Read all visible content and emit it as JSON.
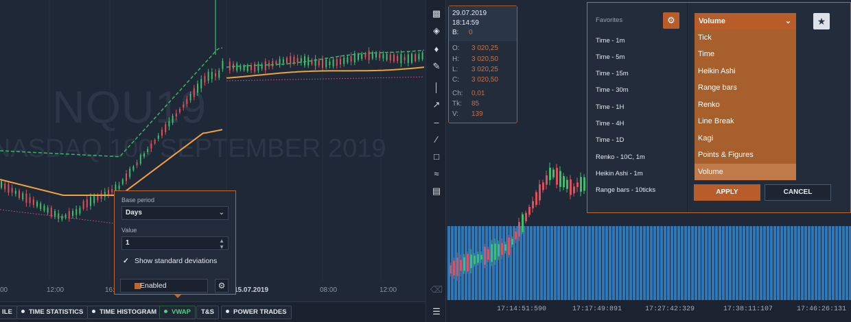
{
  "left_chart": {
    "ticker": "NQU19",
    "description": "NASDAQ 100 SEPTEMBER 2019",
    "axis_labels": [
      "00",
      "12:00",
      "16:",
      "15.07.2019",
      "08:00",
      "12:00"
    ]
  },
  "bottom_tabs": [
    "ILE",
    "TIME STATISTICS",
    "TIME HISTOGRAM",
    "VWAP",
    "T&S",
    "POWER TRADES"
  ],
  "vwap_popup": {
    "base_period_label": "Base period",
    "base_period_value": "Days",
    "value_label": "Value",
    "value": "1",
    "show_std_dev_label": "Show standard deviations",
    "enabled_label": "Enabled"
  },
  "toolbar": {
    "icons": [
      "bar-chart-icon",
      "layers-icon",
      "bell-icon",
      "draw-icon",
      "vertical-line-icon",
      "arrow-icon",
      "horizontal-line-icon",
      "trend-line-icon",
      "rectangle-icon",
      "fibonacci-icon",
      "template-icon",
      "trash-icon",
      "list-icon"
    ]
  },
  "ohlc": {
    "date": "29.07.2019",
    "time": "18:14:59",
    "b_label": "B:",
    "b_value": "0",
    "o_label": "O:",
    "o_value": "3 020,25",
    "h_label": "H:",
    "h_value": "3 020,50",
    "l_label": "L:",
    "l_value": "3 020,25",
    "c_label": "C:",
    "c_value": "3 020,50",
    "ch_label": "Ch:",
    "ch_value": "0,01",
    "tk_label": "Tk:",
    "tk_value": "85",
    "v_label": "V:",
    "v_value": "139"
  },
  "chart_type_panel": {
    "favorites_title": "Favorites",
    "favorites": [
      "Time - 1m",
      "Time - 5m",
      "Time - 15m",
      "Time - 30m",
      "Time - 1H",
      "Time - 4H",
      "Time - 1D",
      "Renko - 10C, 1m",
      "Heikin Ashi - 1m",
      "Range bars - 10ticks"
    ],
    "selected_type": "Volume",
    "options": [
      "Tick",
      "Time",
      "Heikin Ashi",
      "Range bars",
      "Renko",
      "Line Break",
      "Kagi",
      "Points & Figures",
      "Volume"
    ],
    "apply_label": "APPLY",
    "cancel_label": "CANCEL"
  },
  "right_chart": {
    "axis_labels": [
      "17:14:51:590",
      "17:17:49:891",
      "17:27:42:329",
      "17:38:11:107",
      "17:46:26:131"
    ]
  },
  "colors": {
    "accent": "#c3662a",
    "up": "#3fbf6a",
    "down": "#e0505a",
    "vwap": "#f0a340",
    "volume_bar": "#2e78b8"
  }
}
